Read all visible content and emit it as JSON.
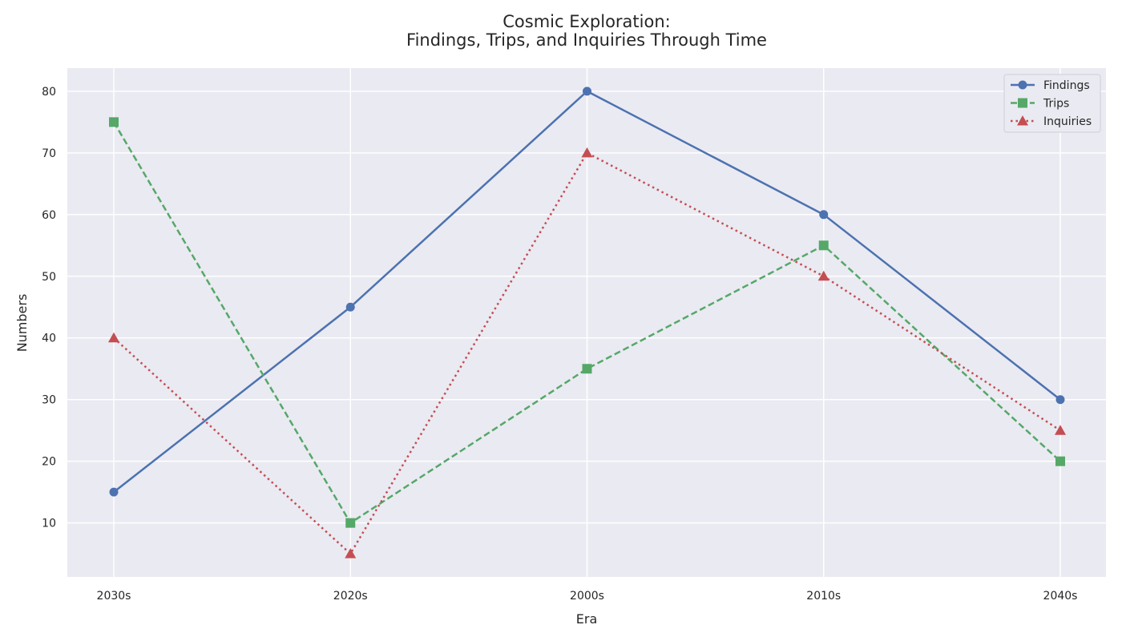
{
  "chart_data": {
    "type": "line",
    "title_lines": [
      "Cosmic Exploration:",
      "Findings, Trips, and Inquiries Through Time"
    ],
    "xlabel": "Era",
    "ylabel": "Numbers",
    "categories": [
      "2030s",
      "2020s",
      "2000s",
      "2010s",
      "2040s"
    ],
    "ylim": [
      1.25,
      83.75
    ],
    "yticks": [
      10,
      20,
      30,
      40,
      50,
      60,
      70,
      80
    ],
    "grid": true,
    "legend_position": "top-right",
    "series": [
      {
        "name": "Findings",
        "values": [
          15,
          45,
          80,
          60,
          30
        ],
        "color": "#4c72b0",
        "dash": "solid",
        "marker": "circle"
      },
      {
        "name": "Trips",
        "values": [
          75,
          10,
          35,
          55,
          20
        ],
        "color": "#55a868",
        "dash": "dashed",
        "marker": "square"
      },
      {
        "name": "Inquiries",
        "values": [
          40,
          5,
          70,
          50,
          25
        ],
        "color": "#c44e52",
        "dash": "dotted",
        "marker": "triangle"
      }
    ]
  }
}
